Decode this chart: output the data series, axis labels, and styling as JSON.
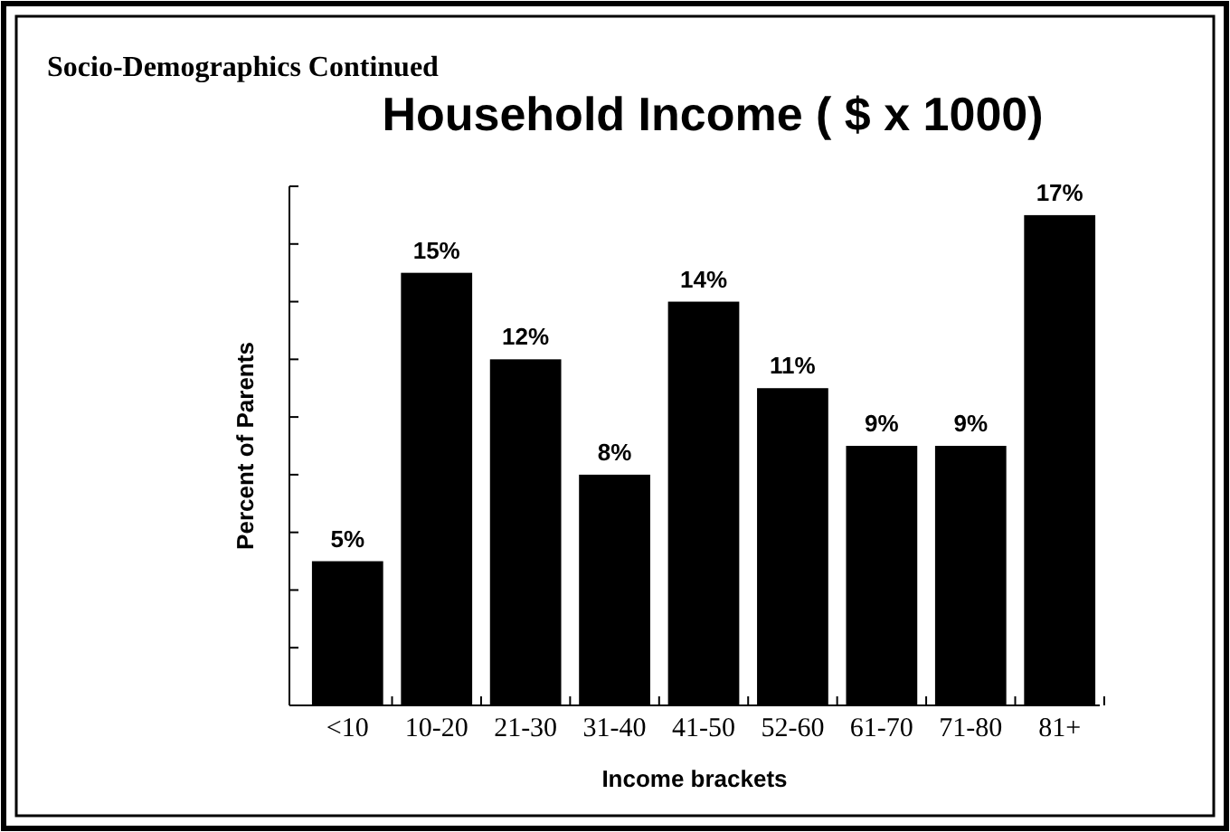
{
  "chart_data": {
    "type": "bar",
    "title": "Household Income ( $ x 1000)",
    "xlabel": "Income brackets",
    "ylabel": "Percent of Parents",
    "categories": [
      "<10",
      "10-20",
      "21-30",
      "31-40",
      "41-50",
      "52-60",
      "61-70",
      "71-80",
      "81+"
    ],
    "values": [
      5,
      15,
      12,
      8,
      14,
      11,
      9,
      9,
      17
    ],
    "color": "#000000",
    "value_labels": [
      "5%",
      "15%",
      "12%",
      "8%",
      "14%",
      "11%",
      "9%",
      "9%",
      "17%"
    ],
    "ylim": [
      0,
      18
    ],
    "yticks": [
      {
        "value": 0,
        "label": null
      },
      {
        "value": 2,
        "label": null
      },
      {
        "value": 4,
        "label": null
      },
      {
        "value": 6,
        "label": null
      },
      {
        "value": 8,
        "label": null
      },
      {
        "value": 10,
        "label": null
      },
      {
        "value": 12,
        "label": null
      },
      {
        "value": 14,
        "label": null
      },
      {
        "value": 16,
        "label": null
      },
      {
        "value": 18,
        "label": null
      }
    ],
    "tick_labels": "x",
    "annotations": [
      "Socio-Demographics Continued"
    ]
  }
}
